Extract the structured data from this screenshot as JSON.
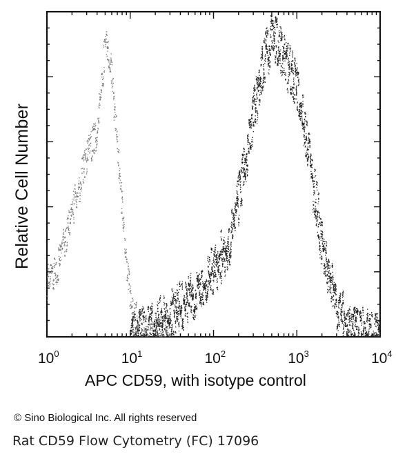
{
  "chart_data": {
    "type": "area",
    "xscale": "log",
    "xlim": [
      1,
      10000
    ],
    "ylim": [
      0,
      100
    ],
    "xlabel": "APC CD59, with isotype control",
    "ylabel": "Relative Cell Number",
    "x_tick_labels": [
      {
        "base": "10",
        "exp": "0"
      },
      {
        "base": "10",
        "exp": "1"
      },
      {
        "base": "10",
        "exp": "2"
      },
      {
        "base": "10",
        "exp": "3"
      },
      {
        "base": "10",
        "exp": "4"
      }
    ],
    "grid": false,
    "series": [
      {
        "style": "dotted-light",
        "color": "#777777",
        "x": [
          1.0,
          1.3,
          1.6,
          2.0,
          2.5,
          3.0,
          3.5,
          4.0,
          4.5,
          5.0,
          5.5,
          6.0,
          7.0,
          8.0,
          9.0,
          10.0,
          12.0,
          15.0,
          20.0,
          30.0
        ],
        "y": [
          18,
          22,
          30,
          40,
          50,
          58,
          62,
          66,
          80,
          95,
          90,
          82,
          60,
          40,
          25,
          12,
          5,
          2,
          1,
          0
        ]
      },
      {
        "style": "dotted-dark",
        "color": "#222222",
        "x": [
          10,
          15,
          20,
          30,
          50,
          70,
          100,
          150,
          200,
          300,
          400,
          500,
          600,
          700,
          800,
          1000,
          1200,
          1500,
          2000,
          3000,
          5000,
          10000
        ],
        "y": [
          0,
          3,
          5,
          8,
          12,
          17,
          22,
          30,
          45,
          72,
          88,
          96,
          94,
          88,
          86,
          80,
          68,
          52,
          30,
          10,
          2,
          0
        ]
      }
    ]
  },
  "footer": {
    "copyright": "© Sino Biological Inc. All rights reserved",
    "caption": "Rat CD59 Flow Cytometry (FC) 17096"
  }
}
